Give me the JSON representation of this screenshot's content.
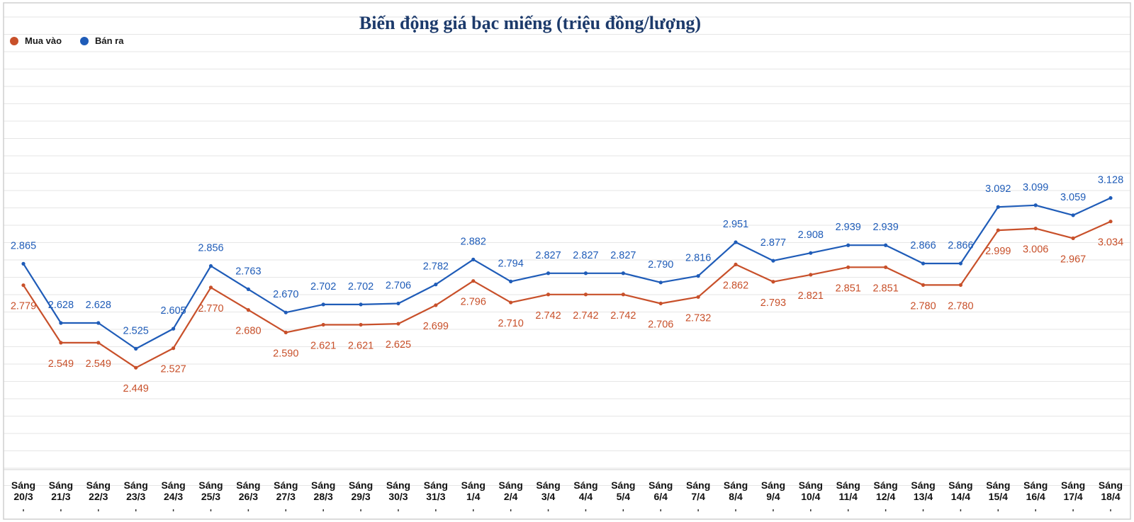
{
  "chart_data": {
    "type": "line",
    "title": "Biến động giá bạc miếng (triệu đồng/lượng)",
    "legend_position": "top-left",
    "grid": true,
    "categories": [
      [
        "Sáng",
        "20/3"
      ],
      [
        "Sáng",
        "21/3"
      ],
      [
        "Sáng",
        "22/3"
      ],
      [
        "Sáng",
        "23/3"
      ],
      [
        "Sáng",
        "24/3"
      ],
      [
        "Sáng",
        "25/3"
      ],
      [
        "Sáng",
        "26/3"
      ],
      [
        "Sáng",
        "27/3"
      ],
      [
        "Sáng",
        "28/3"
      ],
      [
        "Sáng",
        "29/3"
      ],
      [
        "Sáng",
        "30/3"
      ],
      [
        "Sáng",
        "31/3"
      ],
      [
        "Sáng",
        "1/4"
      ],
      [
        "Sáng",
        "2/4"
      ],
      [
        "Sáng",
        "3/4"
      ],
      [
        "Sáng",
        "4/4"
      ],
      [
        "Sáng",
        "5/4"
      ],
      [
        "Sáng",
        "6/4"
      ],
      [
        "Sáng",
        "7/4"
      ],
      [
        "Sáng",
        "8/4"
      ],
      [
        "Sáng",
        "9/4"
      ],
      [
        "Sáng",
        "10/4"
      ],
      [
        "Sáng",
        "11/4"
      ],
      [
        "Sáng",
        "12/4"
      ],
      [
        "Sáng",
        "13/4"
      ],
      [
        "Sáng",
        "14/4"
      ],
      [
        "Sáng",
        "15/4"
      ],
      [
        "Sáng",
        "16/4"
      ],
      [
        "Sáng",
        "17/4"
      ],
      [
        "Sáng",
        "18/4"
      ]
    ],
    "ylim": [
      2.05,
      3.75
    ],
    "series": [
      {
        "name": "Mua vào",
        "color": "#c8502a",
        "labels": [
          "2.779",
          "2.549",
          "2.549",
          "2.449",
          "2.527",
          "2.770",
          "2.680",
          "2.590",
          "2.621",
          "2.621",
          "2.625",
          "2.699",
          "2.796",
          "2.710",
          "2.742",
          "2.742",
          "2.742",
          "2.706",
          "2.732",
          "2.862",
          "2.793",
          "2.821",
          "2.851",
          "2.851",
          "2.780",
          "2.780",
          "2.999",
          "3.006",
          "2.967",
          "3.034"
        ],
        "values": [
          2.779,
          2.549,
          2.549,
          2.449,
          2.527,
          2.77,
          2.68,
          2.59,
          2.621,
          2.621,
          2.625,
          2.699,
          2.796,
          2.71,
          2.742,
          2.742,
          2.742,
          2.706,
          2.732,
          2.862,
          2.793,
          2.821,
          2.851,
          2.851,
          2.78,
          2.78,
          2.999,
          3.006,
          2.967,
          3.034
        ]
      },
      {
        "name": "Bán ra",
        "color": "#1f5cb8",
        "labels": [
          "2.865",
          "2.628",
          "2.628",
          "2.525",
          "2.605",
          "2.856",
          "2.763",
          "2.670",
          "2.702",
          "2.702",
          "2.706",
          "2.782",
          "2.882",
          "2.794",
          "2.827",
          "2.827",
          "2.827",
          "2.790",
          "2.816",
          "2.951",
          "2.877",
          "2.908",
          "2.939",
          "2.939",
          "2.866",
          "2.866",
          "3.092",
          "3.099",
          "3.059",
          "3.128"
        ],
        "values": [
          2.865,
          2.628,
          2.628,
          2.525,
          2.605,
          2.856,
          2.763,
          2.67,
          2.702,
          2.702,
          2.706,
          2.782,
          2.882,
          2.794,
          2.827,
          2.827,
          2.827,
          2.79,
          2.816,
          2.951,
          2.877,
          2.908,
          2.939,
          2.939,
          2.866,
          2.866,
          3.092,
          3.099,
          3.059,
          3.128
        ]
      }
    ]
  }
}
